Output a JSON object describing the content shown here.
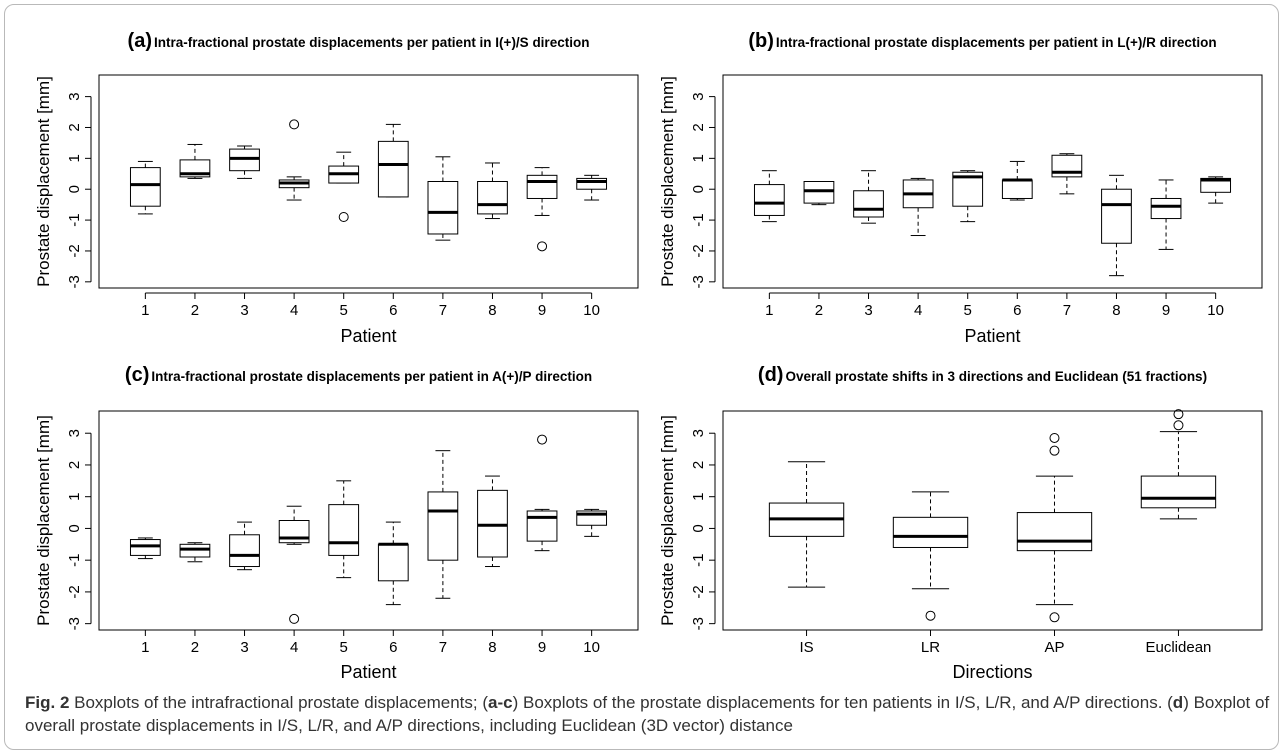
{
  "chart_data": [
    {
      "type": "boxplot",
      "panel_label": "(a)",
      "title": "Intra-fractional prostate displacements per patient in I(+)/S direction",
      "xlabel": "Patient",
      "ylabel": "Prostate displacement [mm]",
      "ylim": [
        -3.2,
        3.7
      ],
      "yticks": [
        "-3",
        "-2",
        "-1",
        "0",
        "1",
        "2",
        "3"
      ],
      "categories": [
        "1",
        "2",
        "3",
        "4",
        "5",
        "6",
        "7",
        "8",
        "9",
        "10"
      ],
      "boxes": [
        {
          "low": -0.8,
          "q1": -0.55,
          "median": 0.15,
          "q3": 0.7,
          "high": 0.9,
          "outliers": []
        },
        {
          "low": 0.35,
          "q1": 0.4,
          "median": 0.5,
          "q3": 0.95,
          "high": 1.45,
          "outliers": []
        },
        {
          "low": 0.35,
          "q1": 0.6,
          "median": 1.0,
          "q3": 1.3,
          "high": 1.4,
          "outliers": []
        },
        {
          "low": -0.35,
          "q1": 0.05,
          "median": 0.2,
          "q3": 0.3,
          "high": 0.4,
          "outliers": [
            2.1
          ]
        },
        {
          "low": 0.2,
          "q1": 0.2,
          "median": 0.5,
          "q3": 0.75,
          "high": 1.2,
          "outliers": [
            -0.9
          ]
        },
        {
          "low": -0.25,
          "q1": -0.25,
          "median": 0.8,
          "q3": 1.55,
          "high": 2.1,
          "outliers": []
        },
        {
          "low": -1.65,
          "q1": -1.45,
          "median": -0.75,
          "q3": 0.25,
          "high": 1.05,
          "outliers": []
        },
        {
          "low": -0.95,
          "q1": -0.8,
          "median": -0.5,
          "q3": 0.25,
          "high": 0.85,
          "outliers": []
        },
        {
          "low": -0.85,
          "q1": -0.3,
          "median": 0.25,
          "q3": 0.45,
          "high": 0.7,
          "outliers": [
            -1.85
          ]
        },
        {
          "low": -0.35,
          "q1": 0.0,
          "median": 0.25,
          "q3": 0.35,
          "high": 0.45,
          "outliers": []
        }
      ]
    },
    {
      "type": "boxplot",
      "panel_label": "(b)",
      "title": "Intra-fractional prostate displacements per patient in L(+)/R direction",
      "xlabel": "Patient",
      "ylabel": "Prostate displacement [mm]",
      "ylim": [
        -3.2,
        3.7
      ],
      "yticks": [
        "-3",
        "-2",
        "-1",
        "0",
        "1",
        "2",
        "3"
      ],
      "categories": [
        "1",
        "2",
        "3",
        "4",
        "5",
        "6",
        "7",
        "8",
        "9",
        "10"
      ],
      "boxes": [
        {
          "low": -1.05,
          "q1": -0.85,
          "median": -0.45,
          "q3": 0.15,
          "high": 0.6,
          "outliers": []
        },
        {
          "low": -0.5,
          "q1": -0.45,
          "median": -0.05,
          "q3": 0.25,
          "high": 0.25,
          "outliers": []
        },
        {
          "low": -1.1,
          "q1": -0.9,
          "median": -0.65,
          "q3": -0.05,
          "high": 0.6,
          "outliers": []
        },
        {
          "low": -1.5,
          "q1": -0.6,
          "median": -0.15,
          "q3": 0.3,
          "high": 0.35,
          "outliers": []
        },
        {
          "low": -1.05,
          "q1": -0.55,
          "median": 0.4,
          "q3": 0.55,
          "high": 0.6,
          "outliers": []
        },
        {
          "low": -0.35,
          "q1": -0.3,
          "median": 0.3,
          "q3": 0.3,
          "high": 0.9,
          "outliers": []
        },
        {
          "low": -0.15,
          "q1": 0.4,
          "median": 0.55,
          "q3": 1.1,
          "high": 1.15,
          "outliers": []
        },
        {
          "low": -2.8,
          "q1": -1.75,
          "median": -0.5,
          "q3": 0.0,
          "high": 0.45,
          "outliers": []
        },
        {
          "low": -1.95,
          "q1": -0.95,
          "median": -0.55,
          "q3": -0.3,
          "high": 0.3,
          "outliers": []
        },
        {
          "low": -0.45,
          "q1": -0.1,
          "median": 0.3,
          "q3": 0.35,
          "high": 0.4,
          "outliers": []
        }
      ]
    },
    {
      "type": "boxplot",
      "panel_label": "(c)",
      "title": "Intra-fractional prostate displacements per patient in A(+)/P direction",
      "xlabel": "Patient",
      "ylabel": "Prostate displacement [mm]",
      "ylim": [
        -3.2,
        3.7
      ],
      "yticks": [
        "-3",
        "-2",
        "-1",
        "0",
        "1",
        "2",
        "3"
      ],
      "categories": [
        "1",
        "2",
        "3",
        "4",
        "5",
        "6",
        "7",
        "8",
        "9",
        "10"
      ],
      "boxes": [
        {
          "low": -0.95,
          "q1": -0.85,
          "median": -0.55,
          "q3": -0.35,
          "high": -0.3,
          "outliers": []
        },
        {
          "low": -1.05,
          "q1": -0.9,
          "median": -0.65,
          "q3": -0.5,
          "high": -0.45,
          "outliers": []
        },
        {
          "low": -1.3,
          "q1": -1.2,
          "median": -0.85,
          "q3": -0.2,
          "high": 0.2,
          "outliers": []
        },
        {
          "low": -0.5,
          "q1": -0.45,
          "median": -0.3,
          "q3": 0.25,
          "high": 0.7,
          "outliers": [
            -2.85
          ]
        },
        {
          "low": -1.55,
          "q1": -0.85,
          "median": -0.45,
          "q3": 0.75,
          "high": 1.5,
          "outliers": []
        },
        {
          "low": -2.4,
          "q1": -1.65,
          "median": -0.5,
          "q3": -0.5,
          "high": 0.2,
          "outliers": []
        },
        {
          "low": -2.2,
          "q1": -1.0,
          "median": 0.55,
          "q3": 1.15,
          "high": 2.45,
          "outliers": []
        },
        {
          "low": -1.2,
          "q1": -0.9,
          "median": 0.1,
          "q3": 1.2,
          "high": 1.65,
          "outliers": []
        },
        {
          "low": -0.7,
          "q1": -0.4,
          "median": 0.35,
          "q3": 0.55,
          "high": 0.6,
          "outliers": [
            2.8
          ]
        },
        {
          "low": -0.25,
          "q1": 0.1,
          "median": 0.45,
          "q3": 0.55,
          "high": 0.6,
          "outliers": []
        }
      ]
    },
    {
      "type": "boxplot",
      "panel_label": "(d)",
      "title": "Overall prostate shifts in 3 directions and Euclidean (51 fractions)",
      "xlabel": "Directions",
      "ylabel": "Prostate displacement [mm]",
      "ylim": [
        -3.2,
        3.7
      ],
      "yticks": [
        "-3",
        "-2",
        "-1",
        "0",
        "1",
        "2",
        "3"
      ],
      "categories": [
        "IS",
        "LR",
        "AP",
        "Euclidean"
      ],
      "boxes": [
        {
          "low": -1.85,
          "q1": -0.25,
          "median": 0.3,
          "q3": 0.8,
          "high": 2.1,
          "outliers": []
        },
        {
          "low": -1.9,
          "q1": -0.6,
          "median": -0.25,
          "q3": 0.35,
          "high": 1.15,
          "outliers": [
            -2.75
          ]
        },
        {
          "low": -2.4,
          "q1": -0.7,
          "median": -0.4,
          "q3": 0.5,
          "high": 1.65,
          "outliers": [
            2.85,
            2.45,
            -2.8
          ]
        },
        {
          "low": 0.3,
          "q1": 0.65,
          "median": 0.95,
          "q3": 1.65,
          "high": 3.05,
          "outliers": [
            3.6,
            3.25
          ]
        }
      ]
    }
  ],
  "caption": {
    "fig_label": "Fig. 2",
    "part1": " Boxplots of the intrafractional prostate displacements; (",
    "bold1": "a-c",
    "part2": ") Boxplots of the prostate displacements for ten patients in I/S, L/R, and A/P directions. (",
    "bold2": "d",
    "part3": ") Boxplot of overall prostate displacements in I/S, L/R, and A/P directions, including Euclidean (3D vector) distance"
  }
}
